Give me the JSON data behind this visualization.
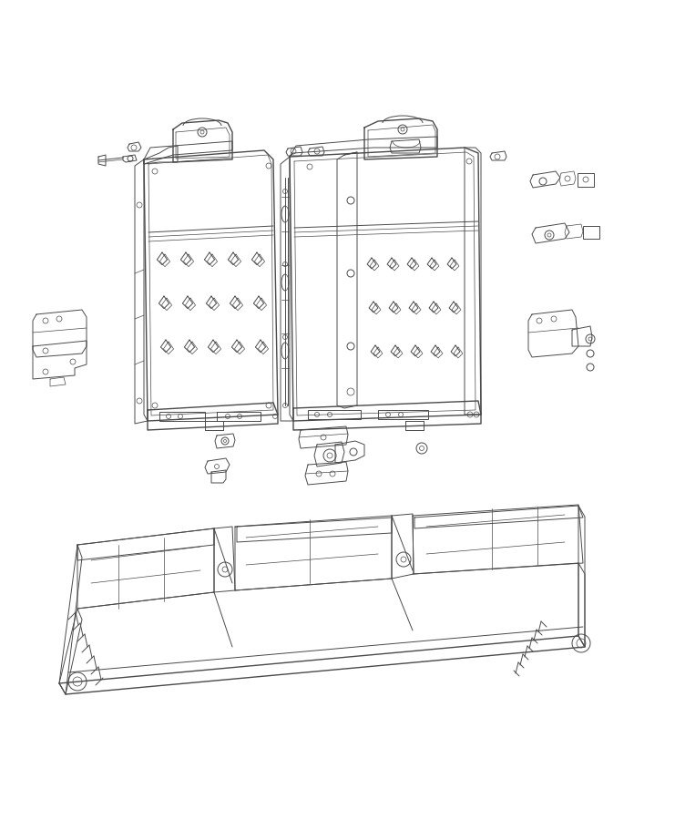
{
  "bg_color": "#ffffff",
  "line_color": "#4a4a4a",
  "lw_main": 1.0,
  "lw_med": 0.7,
  "lw_thin": 0.5,
  "fig_width": 7.41,
  "fig_height": 9.0,
  "dpi": 100
}
